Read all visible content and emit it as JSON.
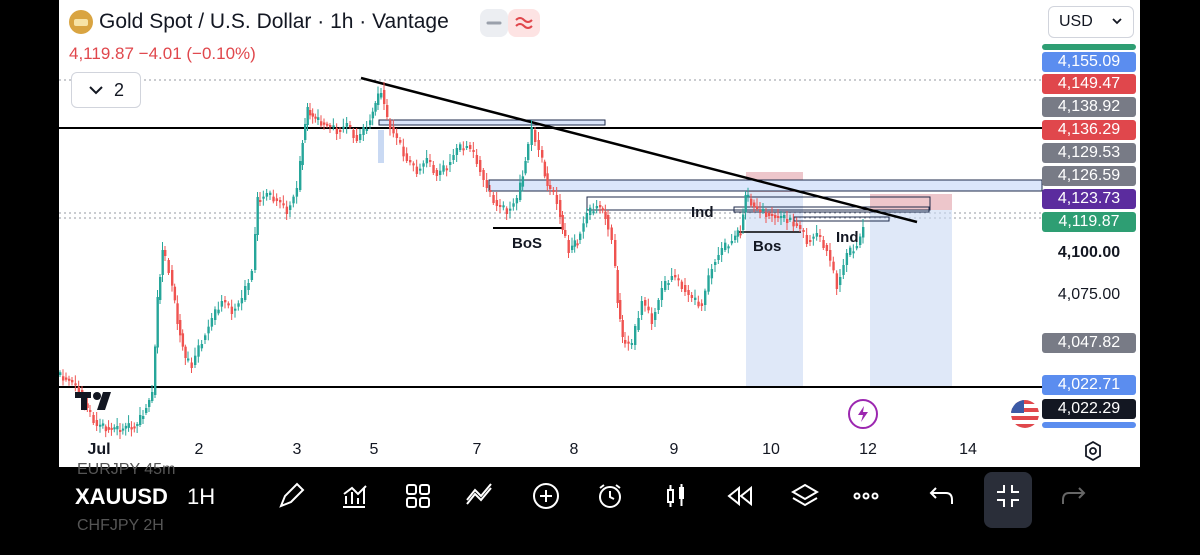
{
  "header": {
    "title": "Gold Spot / U.S. Dollar · 1h · Vantage",
    "price_line": "4,119.87  −4.01 (−0.10%)",
    "layers_count": "2",
    "currency": "USD"
  },
  "price_axis": {
    "labels": [
      {
        "text": "4,155.09",
        "color": "#5b8def"
      },
      {
        "text": "4,149.47",
        "color": "#e0474c"
      },
      {
        "text": "4,138.92",
        "color": "#787b86"
      },
      {
        "text": "4,136.29",
        "color": "#e0474c"
      },
      {
        "text": "4,129.53",
        "color": "#787b86"
      },
      {
        "text": "4,126.59",
        "color": "#787b86"
      },
      {
        "text": "4,123.73",
        "color": "#5b2c9e"
      },
      {
        "text": "4,119.87",
        "color": "#2e9e73"
      }
    ],
    "scale": [
      "4,100.00",
      "4,075.00"
    ],
    "lower_labels": [
      {
        "text": "4,047.82",
        "color": "#787b86"
      },
      {
        "text": "4,022.71",
        "color": "#5b8def"
      },
      {
        "text": "4,022.29",
        "color": "#131722"
      }
    ]
  },
  "time_axis": [
    "Jul",
    "2",
    "3",
    "5",
    "7",
    "8",
    "9",
    "10",
    "12",
    "14"
  ],
  "annotations": {
    "bos1": "BoS",
    "bos2": "Bos",
    "ind1": "Ind",
    "ind2": "Ind"
  },
  "bottom_bar": {
    "symbol": "XAUUSD",
    "interval": "1H",
    "ghost_above": "EURJPY   45m",
    "ghost_below": "CHFJPY   2H",
    "icons": [
      "draw-icon",
      "indicators-icon",
      "templates-icon",
      "compare-icon",
      "add-icon",
      "alert-icon",
      "candles-icon",
      "replay-icon",
      "layers-icon",
      "more-icon",
      "undo-icon",
      "fullscreen-exit-icon",
      "redo-icon"
    ]
  }
}
